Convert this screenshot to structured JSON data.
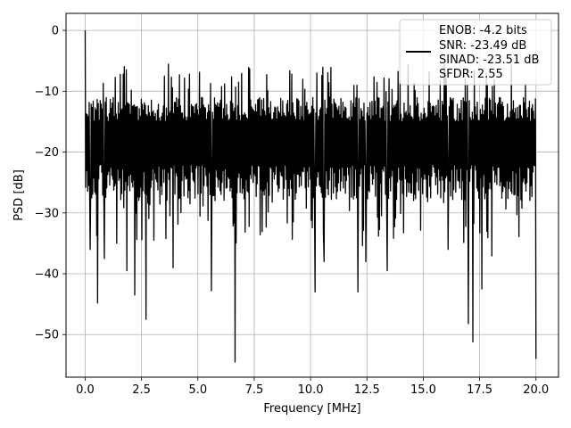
{
  "chart_data": {
    "type": "line",
    "xlabel": "Frequency [MHz]",
    "ylabel": "PSD [dB]",
    "xlim": [
      -0.85,
      21.0
    ],
    "ylim": [
      -57.0,
      2.8
    ],
    "grid": true,
    "line_color": "#000000",
    "xticks": [
      0.0,
      2.5,
      5.0,
      7.5,
      10.0,
      12.5,
      15.0,
      17.5,
      20.0
    ],
    "xtick_labels": [
      "0.0",
      "2.5",
      "5.0",
      "7.5",
      "10.0",
      "12.5",
      "15.0",
      "17.5",
      "20.0"
    ],
    "yticks": [
      0,
      -10,
      -20,
      -30,
      -40,
      -50
    ],
    "ytick_labels": [
      "0",
      "−10",
      "−20",
      "−30",
      "−40",
      "−50"
    ],
    "legend": {
      "placement": "top-right",
      "lines": [
        "ENOB: -4.2 bits",
        "SNR: -23.49 dB",
        "SINAD: -23.51 dB",
        "SFDR: 2.55"
      ]
    },
    "series": [
      {
        "x_start": 0.0,
        "x_end": 20.0,
        "points": 900,
        "typical_range": [
          -27,
          -8
        ],
        "peak": {
          "x": 0.0,
          "y": 0.0
        },
        "dips": [
          {
            "x": 0.22,
            "y": -36
          },
          {
            "x": 0.55,
            "y": -44.8
          },
          {
            "x": 0.85,
            "y": -37.5
          },
          {
            "x": 1.4,
            "y": -35
          },
          {
            "x": 1.85,
            "y": -39.5
          },
          {
            "x": 2.2,
            "y": -43.5
          },
          {
            "x": 2.7,
            "y": -47.5
          },
          {
            "x": 3.9,
            "y": -39
          },
          {
            "x": 5.6,
            "y": -42.8
          },
          {
            "x": 6.65,
            "y": -54.5
          },
          {
            "x": 10.2,
            "y": -43
          },
          {
            "x": 10.6,
            "y": -38
          },
          {
            "x": 12.1,
            "y": -43
          },
          {
            "x": 12.45,
            "y": -38
          },
          {
            "x": 13.4,
            "y": -39.5
          },
          {
            "x": 16.1,
            "y": -36
          },
          {
            "x": 17.0,
            "y": -48.2
          },
          {
            "x": 17.2,
            "y": -51.2
          },
          {
            "x": 17.6,
            "y": -42.5
          },
          {
            "x": 20.0,
            "y": -54
          }
        ]
      }
    ]
  }
}
